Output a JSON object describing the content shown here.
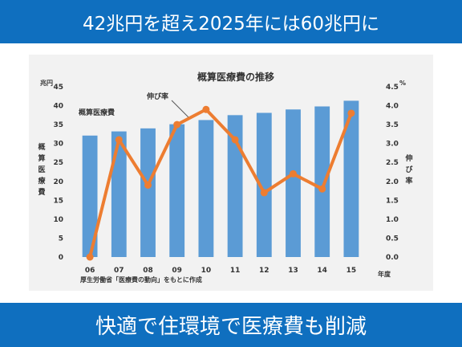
{
  "header": {
    "title": "42兆円を超え2025年には60兆円に"
  },
  "footer": {
    "title": "快適で住環境で医療費も削減"
  },
  "colors": {
    "banner": "#0f6fbf",
    "bar": "#5b9bd5",
    "line": "#ed7d31"
  },
  "chart_data": {
    "type": "bar",
    "title": "概算医療費の推移",
    "categories": [
      "06",
      "07",
      "08",
      "09",
      "10",
      "11",
      "12",
      "13",
      "14",
      "15"
    ],
    "series": [
      {
        "name": "概算医療費",
        "type": "bar",
        "axis": "left",
        "values": [
          32.1,
          33.2,
          34.0,
          35.1,
          36.2,
          37.5,
          38.1,
          39.0,
          39.8,
          41.3
        ]
      },
      {
        "name": "伸び率",
        "type": "line",
        "axis": "right",
        "values": [
          0.0,
          3.1,
          1.9,
          3.5,
          3.9,
          3.1,
          1.7,
          2.2,
          1.8,
          3.8
        ]
      }
    ],
    "y_left": {
      "unit": "兆円",
      "label": "概算医療費",
      "ylim": [
        0,
        45
      ],
      "ticks": [
        "0",
        "5",
        "10",
        "15",
        "20",
        "25",
        "30",
        "35",
        "40",
        "45"
      ]
    },
    "y_right": {
      "unit": "%",
      "label": "伸び率",
      "ylim": [
        0,
        4.5
      ],
      "ticks": [
        "0.0",
        "0.5",
        "1.0",
        "1.5",
        "2.0",
        "2.5",
        "3.0",
        "3.5",
        "4.0",
        "4.5"
      ]
    },
    "x_unit": "年度",
    "source": "厚生労働省「医療費の動向」をもとに作成",
    "grid": false
  }
}
